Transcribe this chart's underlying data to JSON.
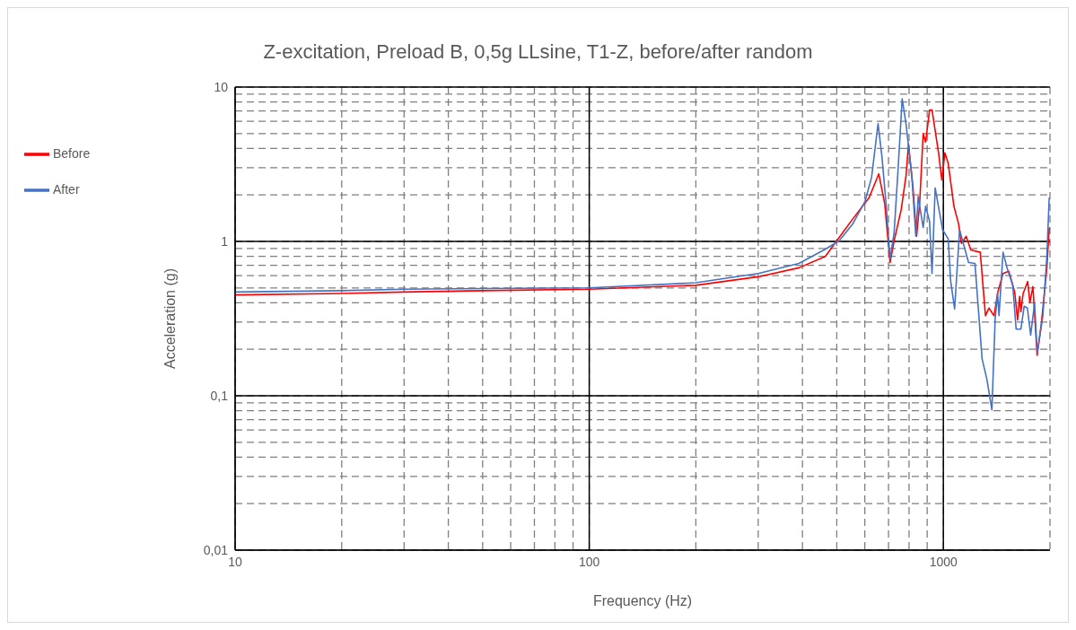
{
  "chart_data": {
    "type": "line",
    "title": "Z-excitation, Preload B, 0,5g LLsine, T1-Z, before/after random",
    "xlabel": "Frequency (Hz)",
    "ylabel": "Acceleration (g)",
    "log": "xy",
    "grid": true,
    "legend": "left",
    "marker": "none",
    "line_style": "solid",
    "xlim": [
      10,
      2000
    ],
    "ylim": [
      0.01,
      10
    ],
    "xticks": [
      10,
      {
        "value": 20,
        "label": null
      },
      {
        "value": 30,
        "label": null
      },
      {
        "value": 40,
        "label": null
      },
      {
        "value": 50,
        "label": null
      },
      {
        "value": 60,
        "label": null
      },
      {
        "value": 70,
        "label": null
      },
      {
        "value": 80,
        "label": null
      },
      {
        "value": 90,
        "label": null
      },
      100,
      {
        "value": 200,
        "label": null
      },
      {
        "value": 300,
        "label": null
      },
      {
        "value": 400,
        "label": null
      },
      {
        "value": 500,
        "label": null
      },
      {
        "value": 600,
        "label": null
      },
      {
        "value": 700,
        "label": null
      },
      {
        "value": 800,
        "label": null
      },
      {
        "value": 900,
        "label": null
      },
      1000,
      {
        "value": 2000,
        "label": null
      }
    ],
    "yticks": [
      {
        "value": 0.01,
        "label": "0,01"
      },
      {
        "value": 0.02,
        "label": null
      },
      {
        "value": 0.03,
        "label": null
      },
      {
        "value": 0.04,
        "label": null
      },
      {
        "value": 0.05,
        "label": null
      },
      {
        "value": 0.06,
        "label": null
      },
      {
        "value": 0.07,
        "label": null
      },
      {
        "value": 0.08,
        "label": null
      },
      {
        "value": 0.09,
        "label": null
      },
      {
        "value": 0.1,
        "label": "0,1"
      },
      {
        "value": 0.2,
        "label": null
      },
      {
        "value": 0.3,
        "label": null
      },
      {
        "value": 0.4,
        "label": null
      },
      {
        "value": 0.5,
        "label": null
      },
      {
        "value": 0.6,
        "label": null
      },
      {
        "value": 0.7,
        "label": null
      },
      {
        "value": 0.8,
        "label": null
      },
      {
        "value": 0.9,
        "label": null
      },
      1,
      {
        "value": 2,
        "label": null
      },
      {
        "value": 3,
        "label": null
      },
      {
        "value": 4,
        "label": null
      },
      {
        "value": 5,
        "label": null
      },
      {
        "value": 6,
        "label": null
      },
      {
        "value": 7,
        "label": null
      },
      {
        "value": 8,
        "label": null
      },
      {
        "value": 9,
        "label": null
      },
      10
    ],
    "series": [
      {
        "name": "Before",
        "color": "#ff0000",
        "x": [
          10,
          20,
          30,
          50,
          100,
          200,
          300,
          391,
          464,
          555,
          617,
          657,
          683,
          707,
          726,
          760,
          785,
          797,
          820,
          840,
          857,
          877,
          891,
          914,
          929,
          970,
          990,
          1010,
          1032,
          1071,
          1104,
          1125,
          1160,
          1195,
          1271,
          1315,
          1345,
          1390,
          1425,
          1474,
          1530,
          1590,
          1620,
          1642,
          1655,
          1680,
          1730,
          1755,
          1790,
          1840,
          1890,
          1960,
          1990
        ],
        "values": [
          0.45,
          0.46,
          0.47,
          0.48,
          0.49,
          0.52,
          0.59,
          0.675,
          0.8,
          1.4,
          1.92,
          2.74,
          1.75,
          0.73,
          1.01,
          1.6,
          2.7,
          4.27,
          2.28,
          1.08,
          1.75,
          5.0,
          4.4,
          7.1,
          7.1,
          3.7,
          2.5,
          3.75,
          3.2,
          1.69,
          1.3,
          0.97,
          1.08,
          0.88,
          0.85,
          0.33,
          0.37,
          0.33,
          0.47,
          0.62,
          0.64,
          0.47,
          0.31,
          0.44,
          0.35,
          0.46,
          0.55,
          0.4,
          0.51,
          0.183,
          0.29,
          0.675,
          1.23
        ]
      },
      {
        "name": "After",
        "color": "#4472c4",
        "x": [
          10,
          20,
          30,
          50,
          100,
          200,
          300,
          391,
          464,
          508,
          555,
          601,
          627,
          654,
          671,
          689,
          707,
          726,
          745,
          765,
          785,
          815,
          836,
          849,
          877,
          891,
          914,
          929,
          948,
          995,
          1032,
          1048,
          1076,
          1111,
          1178,
          1228,
          1286,
          1327,
          1371,
          1400,
          1422,
          1436,
          1474,
          1514,
          1570,
          1605,
          1655,
          1691,
          1727,
          1764,
          1810,
          1840,
          1910,
          1960,
          1990
        ],
        "values": [
          0.47,
          0.48,
          0.49,
          0.495,
          0.5,
          0.54,
          0.62,
          0.72,
          0.89,
          1.01,
          1.3,
          1.82,
          2.6,
          5.8,
          3.5,
          1.75,
          0.77,
          1.14,
          2.96,
          8.4,
          5.7,
          2.6,
          1.08,
          1.95,
          1.23,
          1.69,
          1.35,
          0.62,
          2.22,
          1.19,
          1.04,
          0.56,
          0.365,
          1.19,
          0.73,
          0.72,
          0.174,
          0.128,
          0.081,
          0.31,
          0.46,
          0.33,
          0.85,
          0.67,
          0.52,
          0.27,
          0.27,
          0.38,
          0.37,
          0.247,
          0.4,
          0.19,
          0.33,
          0.8,
          1.92
        ]
      }
    ]
  }
}
